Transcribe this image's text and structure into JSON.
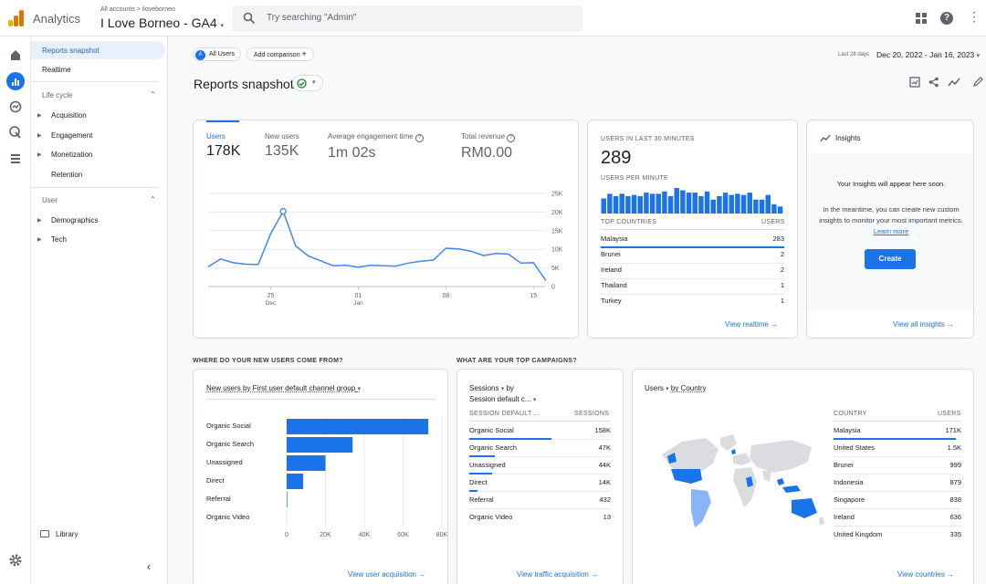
{
  "header": {
    "brand": "Analytics",
    "breadcrumb": "All accounts > iloveborneo",
    "property": "I Love Borneo - GA4",
    "search_placeholder": "Try searching \"Admin\""
  },
  "nav": {
    "reports_snapshot": "Reports snapshot",
    "realtime": "Realtime",
    "life_cycle": "Life cycle",
    "acquisition": "Acquisition",
    "engagement": "Engagement",
    "monetization": "Monetization",
    "retention": "Retention",
    "user": "User",
    "demographics": "Demographics",
    "tech": "Tech",
    "library": "Library"
  },
  "toolbar": {
    "all_users": "All Users",
    "add_comparison": "Add comparison",
    "date_label": "Last 28 days",
    "date_range": "Dec 20, 2022 - Jan 16, 2023",
    "title": "Reports snapshot"
  },
  "metrics": [
    {
      "label": "Users",
      "value": "178K"
    },
    {
      "label": "New users",
      "value": "135K"
    },
    {
      "label": "Average engagement time",
      "value": "1m 02s"
    },
    {
      "label": "Total revenue",
      "value": "RM0.00"
    }
  ],
  "line_chart": {
    "y_ticks": [
      "25K",
      "20K",
      "15K",
      "10K",
      "5K",
      "0"
    ],
    "x_ticks": [
      {
        "d": "25",
        "m": "Dec"
      },
      {
        "d": "01",
        "m": "Jan"
      },
      {
        "d": "08",
        "m": ""
      },
      {
        "d": "15",
        "m": ""
      }
    ]
  },
  "realtime": {
    "title": "USERS IN LAST 30 MINUTES",
    "value": "289",
    "per_minute": "USERS PER MINUTE",
    "top_countries": "TOP COUNTRIES",
    "users_col": "USERS",
    "rows": [
      {
        "c": "Malaysia",
        "v": "283"
      },
      {
        "c": "Brunei",
        "v": "2"
      },
      {
        "c": "Ireland",
        "v": "2"
      },
      {
        "c": "Thailand",
        "v": "1"
      },
      {
        "c": "Turkey",
        "v": "1"
      }
    ],
    "link": "View realtime"
  },
  "insights": {
    "title": "Insights",
    "heading": "Your Insights will appear here soon.",
    "body": "In the meantime, you can create new custom insights to monitor your most important metrics.",
    "learn_more": "Learn more",
    "create": "Create",
    "link": "View all insights"
  },
  "sections": {
    "new_users": "WHERE DO YOUR NEW USERS COME FROM?",
    "campaigns": "WHAT ARE YOUR TOP CAMPAIGNS?"
  },
  "acquisition": {
    "selector": "New users by First user default channel group",
    "x_ticks": [
      "0",
      "20K",
      "40K",
      "60K",
      "80K"
    ],
    "link": "View user acquisition"
  },
  "campaigns": {
    "selector1": "Sessions",
    "selector2": "by",
    "selector3": "Session default c...",
    "col1": "SESSION DEFAULT ...",
    "col2": "SESSIONS",
    "rows": [
      {
        "c": "Organic Social",
        "v": "158K"
      },
      {
        "c": "Organic Search",
        "v": "47K"
      },
      {
        "c": "Unassigned",
        "v": "44K"
      },
      {
        "c": "Direct",
        "v": "14K"
      },
      {
        "c": "Referral",
        "v": "432"
      },
      {
        "c": "Organic Video",
        "v": "13"
      }
    ],
    "link": "View traffic acquisition"
  },
  "countries": {
    "selector1": "Users",
    "selector2": "by Country",
    "col1": "COUNTRY",
    "col2": "USERS",
    "rows": [
      {
        "c": "Malaysia",
        "v": "171K"
      },
      {
        "c": "United States",
        "v": "1.5K"
      },
      {
        "c": "Brunei",
        "v": "999"
      },
      {
        "c": "Indonesia",
        "v": "879"
      },
      {
        "c": "Singapore",
        "v": "838"
      },
      {
        "c": "Ireland",
        "v": "636"
      },
      {
        "c": "United Kingdom",
        "v": "335"
      }
    ],
    "link": "View countries"
  },
  "chart_data": [
    {
      "type": "line",
      "title": "Users",
      "y_ticks": [
        "25K",
        "20K",
        "15K",
        "10K",
        "5K",
        "0"
      ],
      "x_ticks": [
        "25 Dec",
        "01 Jan",
        "08",
        "15"
      ],
      "ylim": [
        0,
        25000
      ],
      "x": [
        "Dec 20",
        "Dec 21",
        "Dec 22",
        "Dec 23",
        "Dec 24",
        "Dec 25",
        "Dec 26",
        "Dec 27",
        "Dec 28",
        "Dec 29",
        "Dec 30",
        "Dec 31",
        "Jan 01",
        "Jan 02",
        "Jan 03",
        "Jan 04",
        "Jan 05",
        "Jan 06",
        "Jan 07",
        "Jan 08",
        "Jan 09",
        "Jan 10",
        "Jan 11",
        "Jan 12",
        "Jan 13",
        "Jan 14",
        "Jan 15",
        "Jan 16"
      ],
      "values": [
        5300,
        7400,
        6400,
        6000,
        5900,
        14200,
        20200,
        10900,
        8200,
        6900,
        5600,
        5700,
        5200,
        5700,
        5600,
        5500,
        6300,
        6800,
        7100,
        10300,
        10100,
        9500,
        8300,
        8900,
        8700,
        6300,
        6400,
        1600
      ]
    },
    {
      "type": "bar",
      "title": "Users per minute",
      "values": [
        13,
        17,
        15,
        17,
        15,
        16,
        15,
        18,
        17,
        17,
        19,
        15,
        22,
        20,
        18,
        18,
        15,
        19,
        12,
        15,
        18,
        16,
        17,
        16,
        18,
        12,
        12,
        16,
        8,
        6
      ]
    },
    {
      "type": "bar",
      "orientation": "horizontal",
      "title": "New users by First user default channel group",
      "categories": [
        "Organic Social",
        "Organic Search",
        "Unassigned",
        "Direct",
        "Referral",
        "Organic Video"
      ],
      "values": [
        73000,
        34000,
        20000,
        8500,
        300,
        10
      ],
      "xlim": [
        0,
        80000
      ]
    }
  ]
}
